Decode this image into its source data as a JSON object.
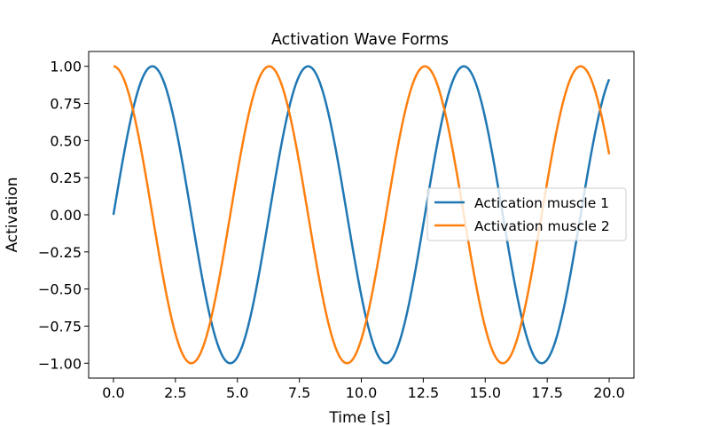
{
  "chart_data": {
    "type": "line",
    "title": "Activation Wave Forms",
    "xlabel": "Time [s]",
    "ylabel": "Activation",
    "xlim": [
      -1.0,
      21.0
    ],
    "ylim": [
      -1.1,
      1.1
    ],
    "xticks": [
      0.0,
      2.5,
      5.0,
      7.5,
      10.0,
      12.5,
      15.0,
      17.5,
      20.0
    ],
    "xtick_labels": [
      "0.0",
      "2.5",
      "5.0",
      "7.5",
      "10.0",
      "12.5",
      "15.0",
      "17.5",
      "20.0"
    ],
    "yticks": [
      1.0,
      0.75,
      0.5,
      0.25,
      0.0,
      -0.25,
      -0.5,
      -0.75,
      -1.0
    ],
    "ytick_labels": [
      "1.00",
      "0.75",
      "0.50",
      "0.25",
      "0.00",
      "−0.25",
      "−0.50",
      "−0.75",
      "−1.00"
    ],
    "grid": false,
    "legend_position": "center-right",
    "x": [
      0,
      0.5,
      1,
      1.5,
      2,
      2.5,
      3,
      3.5,
      4,
      4.5,
      5,
      5.5,
      6,
      6.5,
      7,
      7.5,
      8,
      8.5,
      9,
      9.5,
      10,
      10.5,
      11,
      11.5,
      12,
      12.5,
      13,
      13.5,
      14,
      14.5,
      15,
      15.5,
      16,
      16.5,
      17,
      17.5,
      18,
      18.5,
      19,
      19.5,
      20
    ],
    "series": [
      {
        "name": "Actication muscle 1",
        "color": "#1f77b4",
        "values": [
          0.0,
          0.479,
          0.841,
          0.997,
          0.909,
          0.598,
          0.141,
          -0.351,
          -0.757,
          -0.978,
          -0.959,
          -0.706,
          -0.279,
          0.215,
          0.657,
          0.938,
          0.989,
          0.798,
          0.412,
          -0.075,
          -0.544,
          -0.88,
          -1.0,
          -0.875,
          -0.537,
          -0.066,
          0.42,
          0.804,
          0.991,
          0.935,
          0.65,
          0.206,
          -0.288,
          -0.712,
          -0.961,
          -0.976,
          -0.751,
          -0.342,
          0.15,
          0.605,
          0.913
        ]
      },
      {
        "name": "Activation muscle 2",
        "color": "#ff7f0e",
        "values": [
          1.0,
          0.878,
          0.54,
          0.071,
          -0.416,
          -0.801,
          -0.99,
          -0.936,
          -0.654,
          -0.211,
          0.284,
          0.709,
          0.96,
          0.977,
          0.754,
          0.347,
          -0.146,
          -0.602,
          -0.911,
          -0.997,
          -0.839,
          -0.476,
          0.004,
          0.483,
          0.844,
          0.998,
          0.907,
          0.595,
          0.137,
          -0.355,
          -0.76,
          -0.979,
          -0.958,
          -0.703,
          -0.275,
          0.22,
          0.66,
          0.939,
          0.989,
          0.796,
          0.408
        ]
      }
    ]
  }
}
